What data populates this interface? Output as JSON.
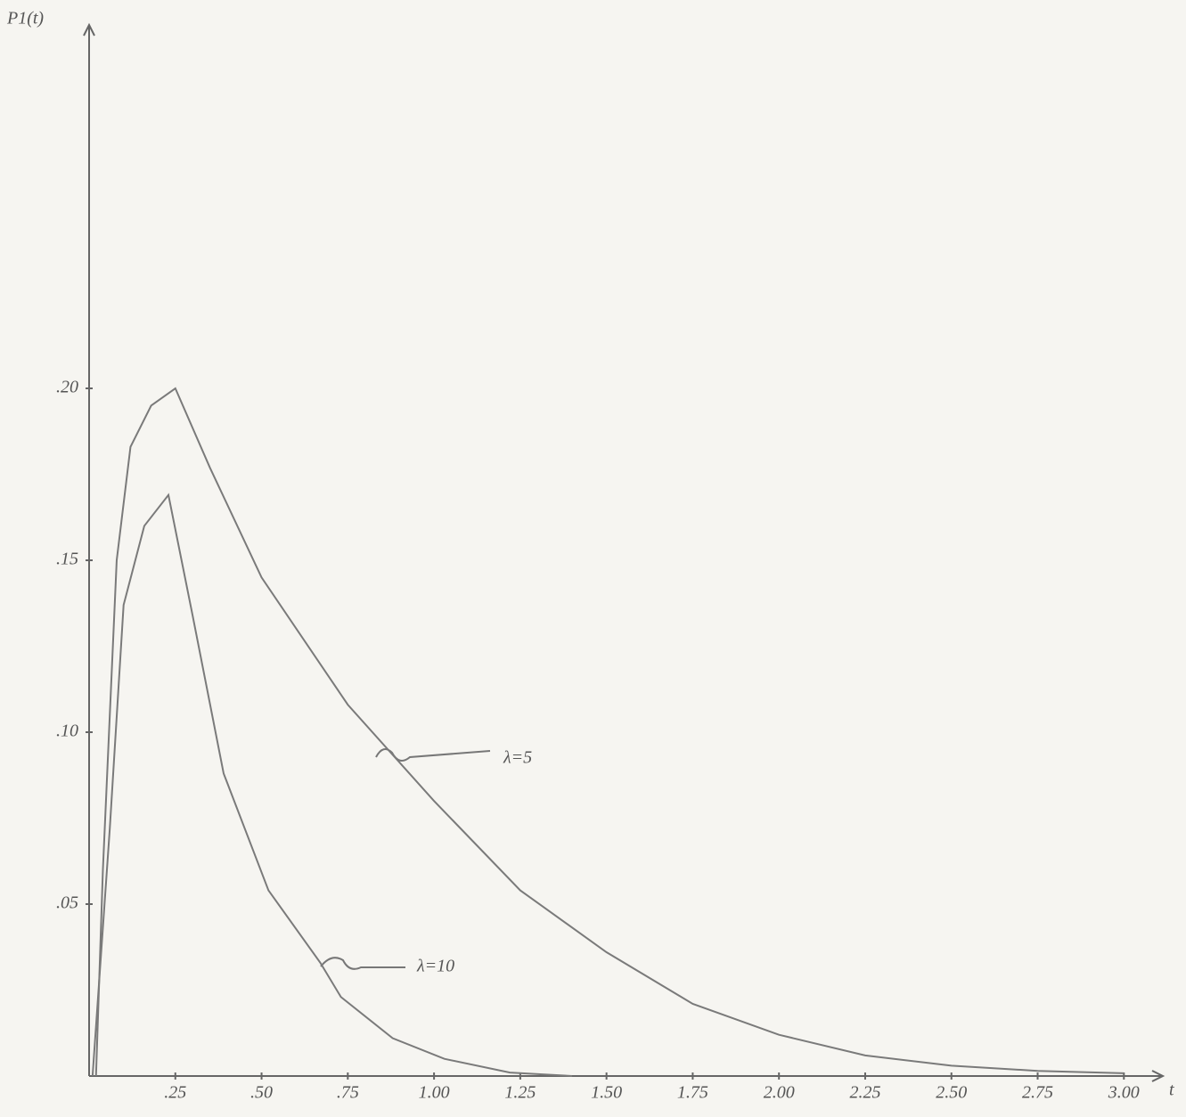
{
  "chart_data": {
    "type": "line",
    "y_label": "P1(t)",
    "x_label": "t",
    "series": [
      {
        "name": "λ=5",
        "color": "#7a7a7a",
        "x": [
          0.02,
          0.04,
          0.08,
          0.12,
          0.18,
          0.25,
          0.35,
          0.5,
          0.75,
          1.0,
          1.25,
          1.5,
          1.75,
          2.0,
          2.25,
          2.5,
          2.75,
          3.0
        ],
        "values": [
          0,
          0.06,
          0.15,
          0.183,
          0.195,
          0.2,
          0.177,
          0.145,
          0.108,
          0.08,
          0.054,
          0.036,
          0.021,
          0.012,
          0.006,
          0.003,
          0.0015,
          0.0008
        ]
      },
      {
        "name": "λ=10",
        "color": "#7a7a7a",
        "x": [
          0.01,
          0.06,
          0.1,
          0.16,
          0.23,
          0.3,
          0.39,
          0.52,
          0.67,
          0.73,
          0.88,
          1.03,
          1.22,
          1.4
        ],
        "values": [
          0,
          0.072,
          0.137,
          0.16,
          0.169,
          0.134,
          0.088,
          0.054,
          0.033,
          0.023,
          0.011,
          0.005,
          0.001,
          0
        ]
      }
    ],
    "xlim": [
      0,
      3.1
    ],
    "ylim": [
      0,
      0.3
    ],
    "xticks": [
      {
        "value": 0.25,
        "label": ".25"
      },
      {
        "value": 0.5,
        "label": ".50"
      },
      {
        "value": 0.75,
        "label": ".75"
      },
      {
        "value": 1,
        "label": "1.00"
      },
      {
        "value": 1.25,
        "label": "1.25"
      },
      {
        "value": 1.5,
        "label": "1.50"
      },
      {
        "value": 1.75,
        "label": "1.75"
      },
      {
        "value": 2,
        "label": "2.00"
      },
      {
        "value": 2.25,
        "label": "2.25"
      },
      {
        "value": 2.5,
        "label": "2.50"
      },
      {
        "value": 2.75,
        "label": "2.75"
      },
      {
        "value": 3,
        "label": "3.00"
      }
    ],
    "yticks": [
      {
        "value": 0.05,
        "label": ".05"
      },
      {
        "value": 0.1,
        "label": ".10"
      },
      {
        "value": 0.15,
        "label": ".15"
      },
      {
        "value": 0.2,
        "label": ".20"
      }
    ]
  }
}
